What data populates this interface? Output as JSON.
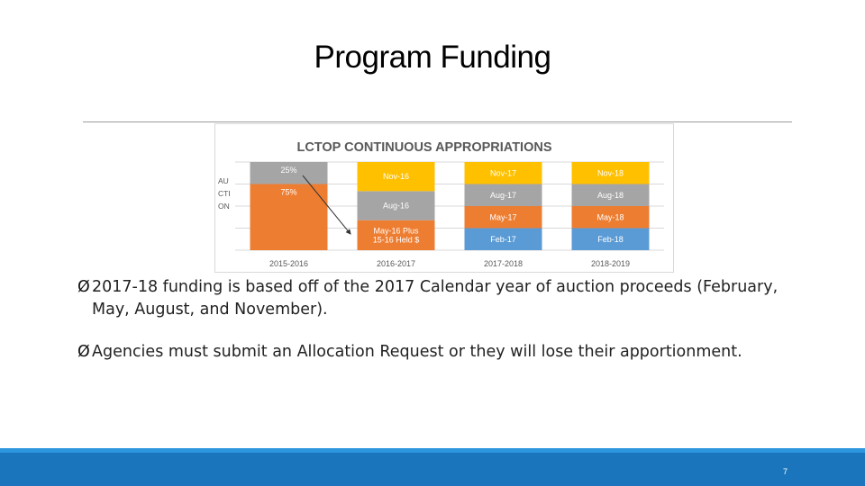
{
  "slide": {
    "title": "Program Funding",
    "page_number": "7"
  },
  "chart_data": {
    "type": "bar",
    "title": "LCTOP CONTINUOUS APPROPRIATIONS",
    "y_axis_label_lines": [
      "AU",
      "CTI",
      "ON"
    ],
    "categories": [
      "2015-2016",
      "2016-2017",
      "2017-2018",
      "2018-2019"
    ],
    "segments": [
      [
        {
          "label": "75%",
          "share": 0.75,
          "color": "#ed7d31"
        },
        {
          "label": "25%",
          "share": 0.25,
          "color": "#a5a5a5"
        }
      ],
      [
        {
          "label_lines": [
            "May-16 Plus",
            "15-16 Held $"
          ],
          "share": 0.34,
          "color": "#ed7d31"
        },
        {
          "label": "Aug-16",
          "share": 0.33,
          "color": "#a5a5a5"
        },
        {
          "label": "Nov-16",
          "share": 0.33,
          "color": "#ffc000"
        }
      ],
      [
        {
          "label": "Feb-17",
          "share": 0.25,
          "color": "#5b9bd5"
        },
        {
          "label": "May-17",
          "share": 0.25,
          "color": "#ed7d31"
        },
        {
          "label": "Aug-17",
          "share": 0.25,
          "color": "#a5a5a5"
        },
        {
          "label": "Nov-17",
          "share": 0.25,
          "color": "#ffc000"
        }
      ],
      [
        {
          "label": "Feb-18",
          "share": 0.25,
          "color": "#5b9bd5"
        },
        {
          "label": "May-18",
          "share": 0.25,
          "color": "#ed7d31"
        },
        {
          "label": "Aug-18",
          "share": 0.25,
          "color": "#a5a5a5"
        },
        {
          "label": "Nov-18",
          "share": 0.25,
          "color": "#ffc000"
        }
      ]
    ],
    "annotation": "arrow from 2015-2016 25% segment to 2016-2017 bottom segment",
    "grid": true
  },
  "bullets": [
    {
      "marker": "Ø",
      "text": "2017-18 funding is based off of the 2017 Calendar year of auction proceeds (February, May, August, and November)."
    },
    {
      "marker": "Ø",
      "text": "Agencies must submit an Allocation Request or they will lose their apportionment."
    }
  ],
  "colors": {
    "footer": "#1b75bc",
    "footer_stripe": "#2c97df"
  }
}
